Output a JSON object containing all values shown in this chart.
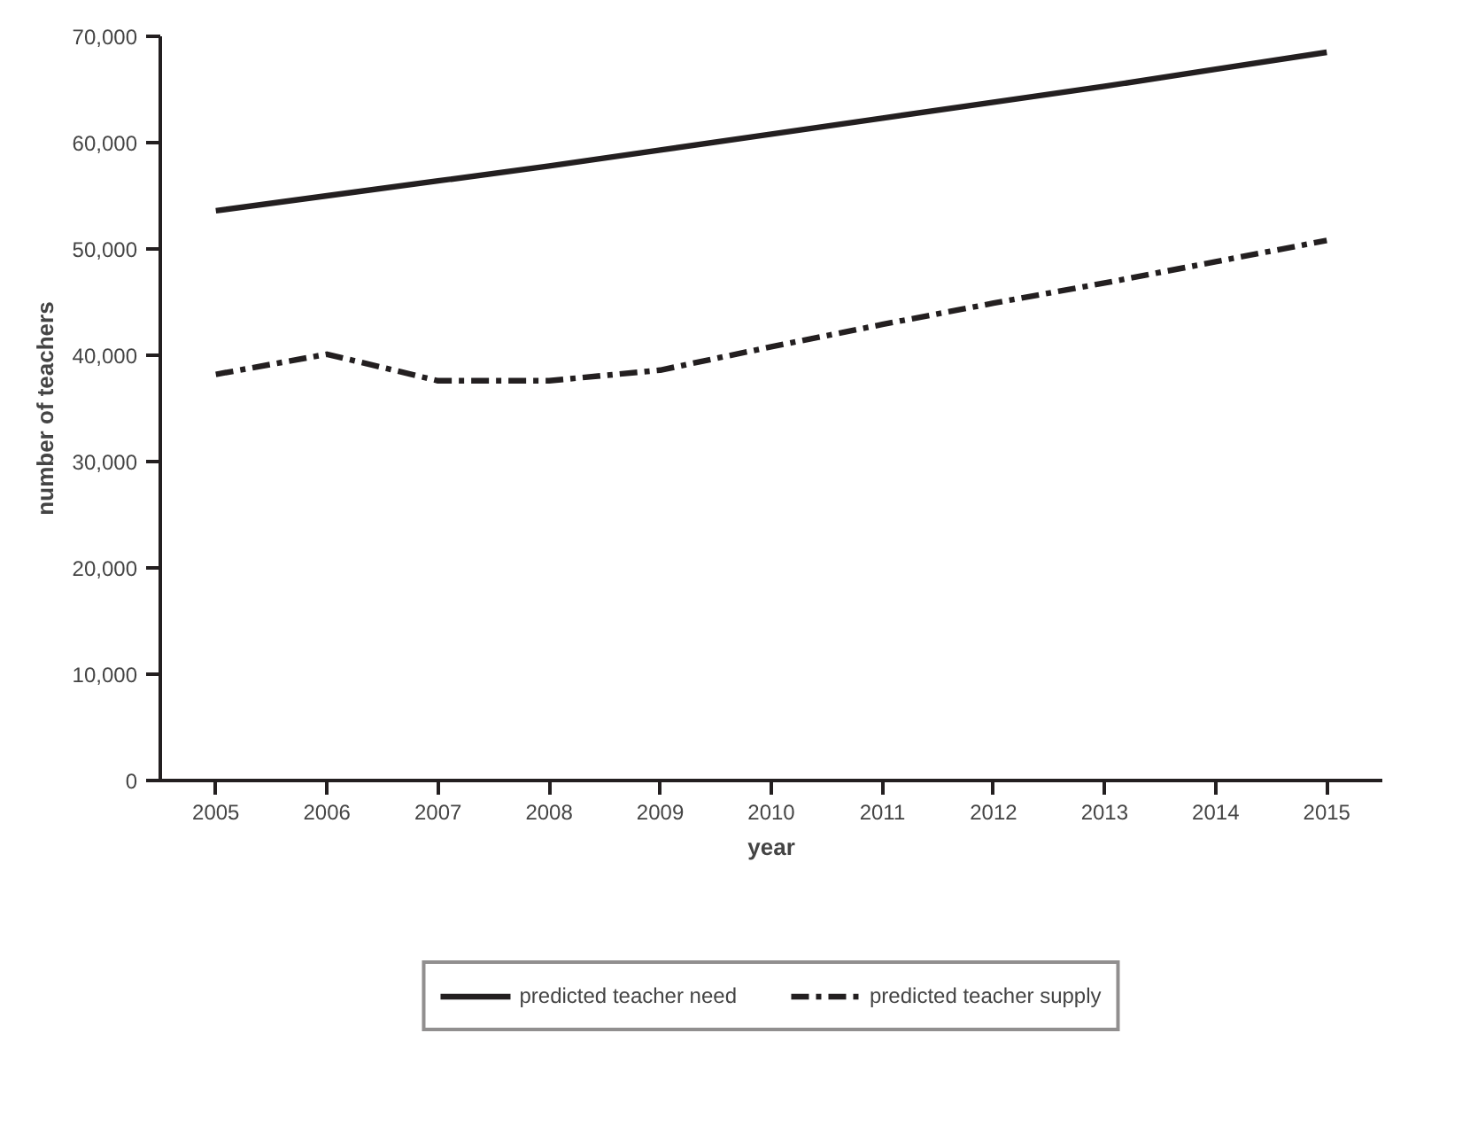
{
  "chart_data": {
    "type": "line",
    "xlabel": "year",
    "ylabel": "number of teachers",
    "categories": [
      "2005",
      "2006",
      "2007",
      "2008",
      "2009",
      "2010",
      "2011",
      "2012",
      "2013",
      "2014",
      "2015"
    ],
    "series": [
      {
        "name": "predicted teacher need",
        "color": "#231f20",
        "line_style": "solid",
        "values": [
          53600,
          55000,
          56400,
          57800,
          59300,
          60800,
          62300,
          63800,
          65300,
          66900,
          68500
        ]
      },
      {
        "name": "predicted teacher supply",
        "color": "#231f20",
        "line_style": "dashdot",
        "values": [
          38200,
          40100,
          37600,
          37600,
          38600,
          40800,
          42900,
          44900,
          46800,
          48800,
          50800
        ]
      }
    ],
    "ylim": [
      0,
      70000
    ],
    "yticks": [
      {
        "value": 0,
        "label": "0"
      },
      {
        "value": 10000,
        "label": "10,000"
      },
      {
        "value": 20000,
        "label": "20,000"
      },
      {
        "value": 30000,
        "label": "30,000"
      },
      {
        "value": 40000,
        "label": "40,000"
      },
      {
        "value": 50000,
        "label": "50,000"
      },
      {
        "value": 60000,
        "label": "60,000"
      },
      {
        "value": 70000,
        "label": "70,000"
      }
    ],
    "grid": false,
    "legend": "bottom",
    "marker": "none"
  }
}
